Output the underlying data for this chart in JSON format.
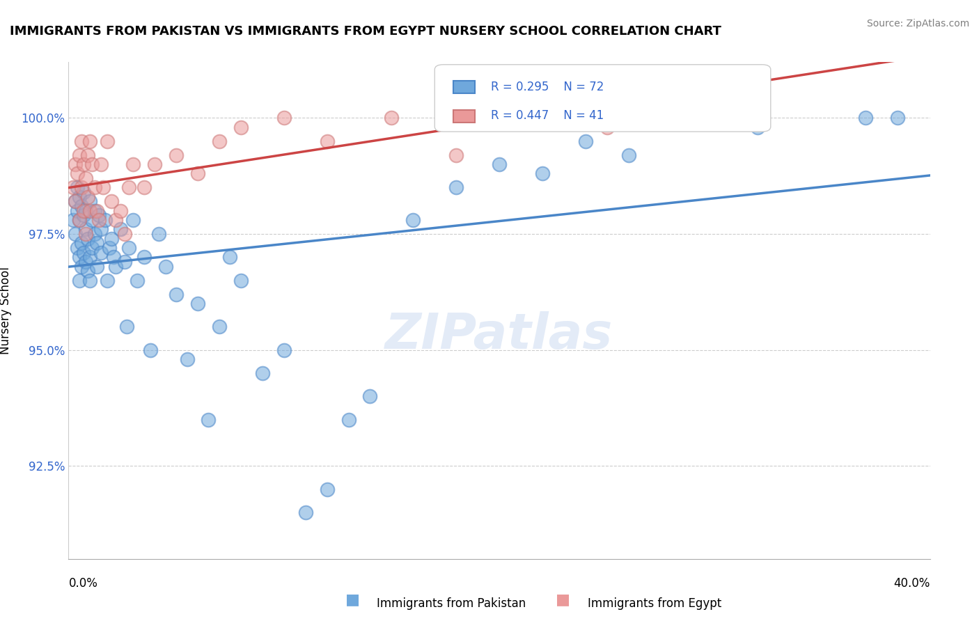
{
  "title": "IMMIGRANTS FROM PAKISTAN VS IMMIGRANTS FROM EGYPT NURSERY SCHOOL CORRELATION CHART",
  "source": "Source: ZipAtlas.com",
  "ylabel": "Nursery School",
  "xlim": [
    0.0,
    40.0
  ],
  "ylim": [
    90.5,
    101.2
  ],
  "r_pakistan": 0.295,
  "n_pakistan": 72,
  "r_egypt": 0.447,
  "n_egypt": 41,
  "color_pakistan": "#6fa8dc",
  "color_egypt": "#ea9999",
  "trendline_pakistan": "#4a86c8",
  "trendline_egypt": "#cc4444",
  "legend_label_pakistan": "Immigrants from Pakistan",
  "legend_label_egypt": "Immigrants from Egypt",
  "pakistan_x": [
    0.2,
    0.3,
    0.3,
    0.4,
    0.4,
    0.4,
    0.5,
    0.5,
    0.5,
    0.5,
    0.6,
    0.6,
    0.6,
    0.7,
    0.7,
    0.7,
    0.8,
    0.8,
    0.8,
    0.9,
    0.9,
    1.0,
    1.0,
    1.0,
    1.1,
    1.1,
    1.2,
    1.2,
    1.3,
    1.3,
    1.4,
    1.5,
    1.5,
    1.7,
    1.8,
    1.9,
    2.0,
    2.1,
    2.2,
    2.4,
    2.6,
    2.7,
    2.8,
    3.0,
    3.2,
    3.5,
    3.8,
    4.2,
    4.5,
    5.0,
    5.5,
    6.0,
    6.5,
    7.0,
    7.5,
    8.0,
    9.0,
    10.0,
    11.0,
    12.0,
    13.0,
    14.0,
    16.0,
    18.0,
    20.0,
    22.0,
    24.0,
    26.0,
    28.0,
    32.0,
    37.0,
    38.5
  ],
  "pakistan_y": [
    97.8,
    98.2,
    97.5,
    98.0,
    97.2,
    98.5,
    97.0,
    97.8,
    98.3,
    96.5,
    98.1,
    97.3,
    96.8,
    97.9,
    97.1,
    98.4,
    97.6,
    96.9,
    98.0,
    97.4,
    96.7,
    98.2,
    97.0,
    96.5,
    97.8,
    97.2,
    98.0,
    97.5,
    97.3,
    96.8,
    97.9,
    97.1,
    97.6,
    97.8,
    96.5,
    97.2,
    97.4,
    97.0,
    96.8,
    97.6,
    96.9,
    95.5,
    97.2,
    97.8,
    96.5,
    97.0,
    95.0,
    97.5,
    96.8,
    96.2,
    94.8,
    96.0,
    93.5,
    95.5,
    97.0,
    96.5,
    94.5,
    95.0,
    91.5,
    92.0,
    93.5,
    94.0,
    97.8,
    98.5,
    99.0,
    98.8,
    99.5,
    99.2,
    100.0,
    99.8,
    100.0,
    100.0
  ],
  "egypt_x": [
    0.2,
    0.3,
    0.3,
    0.4,
    0.5,
    0.5,
    0.6,
    0.6,
    0.7,
    0.7,
    0.8,
    0.8,
    0.9,
    0.9,
    1.0,
    1.0,
    1.1,
    1.2,
    1.3,
    1.4,
    1.5,
    1.6,
    1.8,
    2.0,
    2.2,
    2.4,
    2.6,
    2.8,
    3.0,
    3.5,
    4.0,
    5.0,
    6.0,
    7.0,
    8.0,
    10.0,
    12.0,
    15.0,
    18.0,
    20.0,
    25.0
  ],
  "egypt_y": [
    98.5,
    99.0,
    98.2,
    98.8,
    99.2,
    97.8,
    98.5,
    99.5,
    98.0,
    99.0,
    97.5,
    98.7,
    99.2,
    98.3,
    99.5,
    98.0,
    99.0,
    98.5,
    98.0,
    97.8,
    99.0,
    98.5,
    99.5,
    98.2,
    97.8,
    98.0,
    97.5,
    98.5,
    99.0,
    98.5,
    99.0,
    99.2,
    98.8,
    99.5,
    99.8,
    100.0,
    99.5,
    100.0,
    99.2,
    100.0,
    99.8
  ]
}
